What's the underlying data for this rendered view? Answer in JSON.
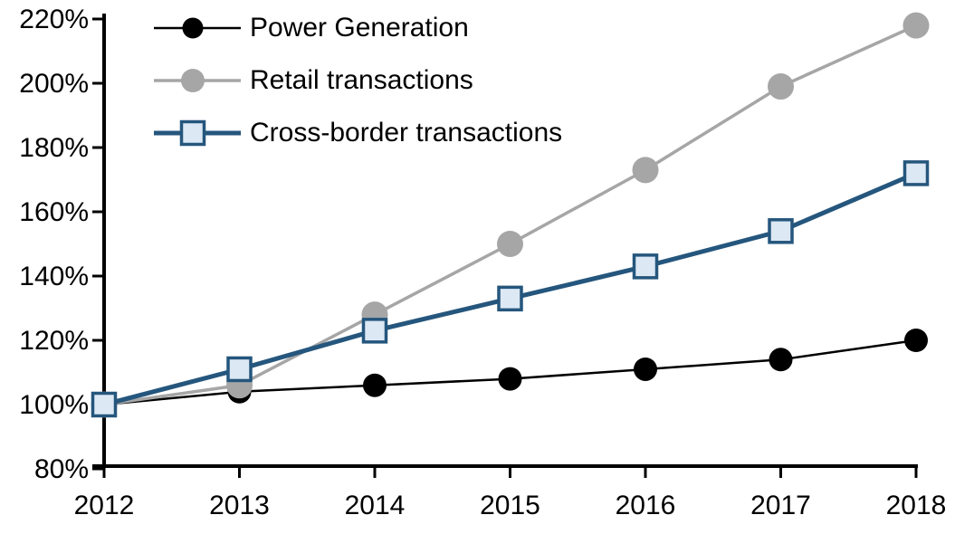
{
  "chart_data": {
    "type": "line",
    "title": "",
    "xlabel": "",
    "ylabel": "",
    "categories": [
      "2012",
      "2013",
      "2014",
      "2015",
      "2016",
      "2017",
      "2018"
    ],
    "series": [
      {
        "name": "Power Generation",
        "values": [
          100,
          104,
          106,
          108,
          111,
          114,
          120
        ],
        "color": "#000000",
        "marker": "circle",
        "marker_fill": "#000000",
        "marker_size": 26,
        "line_width": 2.5
      },
      {
        "name": "Retail transactions",
        "values": [
          100,
          106,
          128,
          150,
          173,
          199,
          218
        ],
        "color": "#A6A6A6",
        "marker": "circle",
        "marker_fill": "#A6A6A6",
        "marker_size": 29,
        "line_width": 3.5
      },
      {
        "name": "Cross-border transactions",
        "values": [
          100,
          111,
          123,
          133,
          143,
          154,
          172
        ],
        "color": "#25567D",
        "marker": "square",
        "marker_fill": "#DCE8F4",
        "marker_border": "#25567D",
        "marker_size": 25,
        "line_width": 5
      }
    ],
    "ylim": [
      80,
      220
    ],
    "y_tick_step": 20,
    "y_tick_labels": [
      "220%",
      "200%",
      "180%",
      "160%",
      "140%",
      "120%",
      "100%",
      "80%"
    ],
    "x_tick_labels": [
      "2012",
      "2013",
      "2014",
      "2015",
      "2016",
      "2017",
      "2018"
    ],
    "grid": false,
    "legend_position": "top-left",
    "axis_color": "#000000"
  }
}
